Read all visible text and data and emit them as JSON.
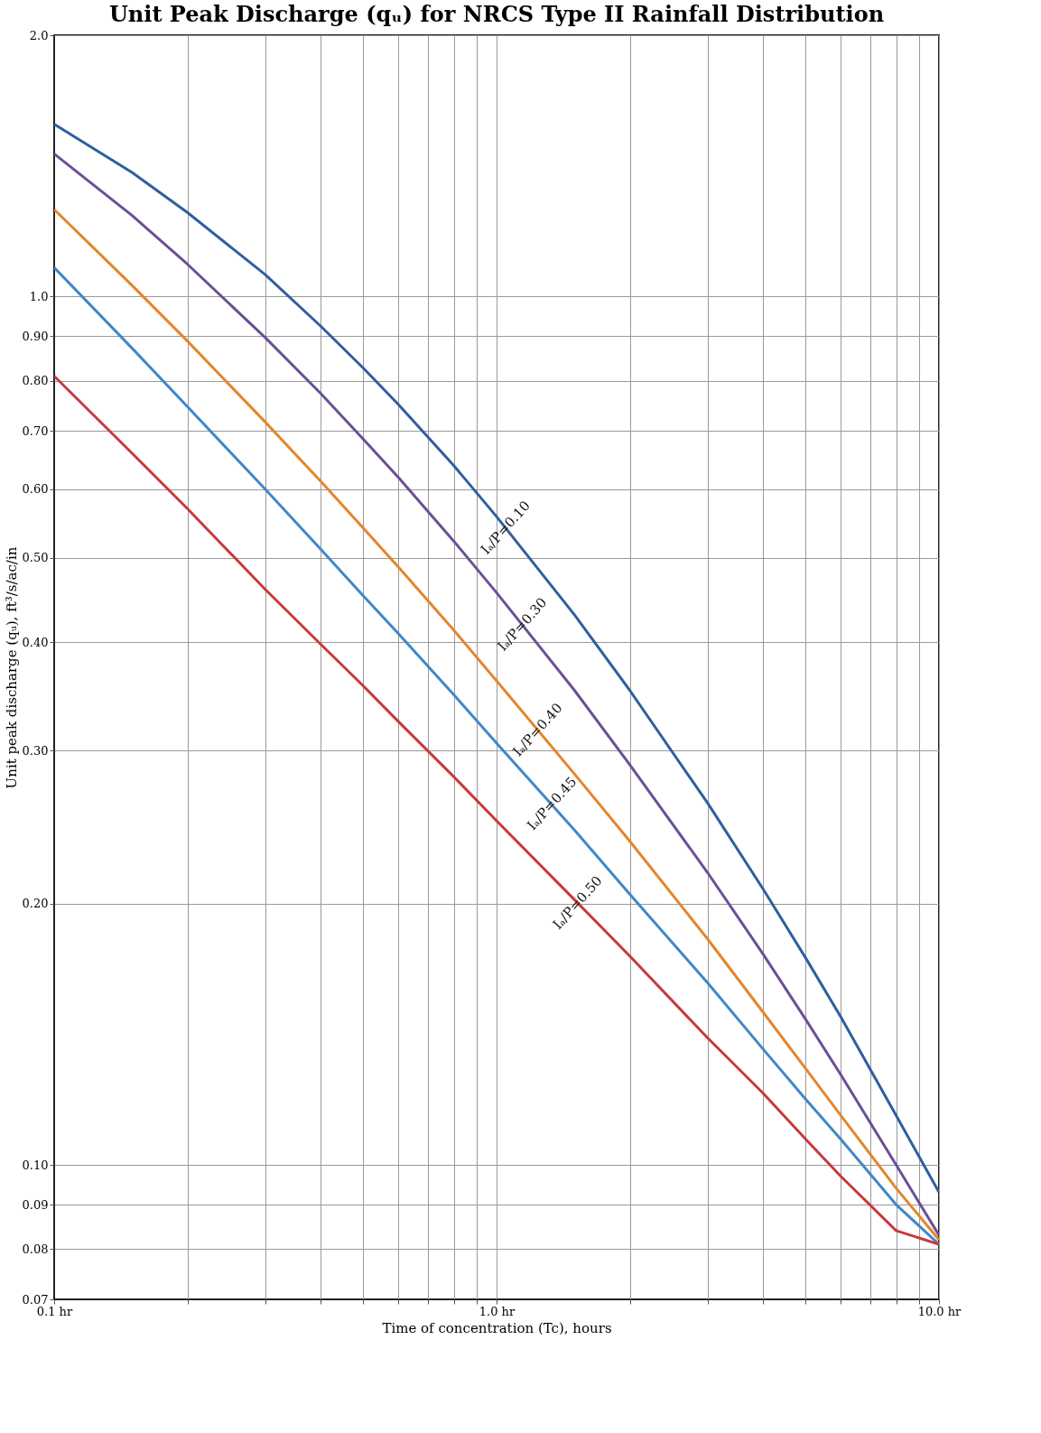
{
  "chart_data": {
    "type": "line",
    "title": "Unit Peak Discharge (qᵤ) for NRCS Type II Rainfall Distribution",
    "xlabel": "Time of concentration (Tc), hours",
    "ylabel": "Unit peak discharge (qᵤ), ft³/s/ac/in",
    "x": [
      0.1,
      0.15,
      0.2,
      0.3,
      0.4,
      0.5,
      0.6,
      0.8,
      1,
      1.5,
      2,
      3,
      4,
      5,
      6,
      8,
      10
    ],
    "series": [
      {
        "color": "#2e5f9e",
        "values": [
          1.58,
          1.39,
          1.25,
          1.06,
          0.925,
          0.827,
          0.751,
          0.639,
          0.558,
          0.43,
          0.352,
          0.261,
          0.208,
          0.173,
          0.148,
          0.114,
          0.093
        ]
      },
      {
        "color": "#6b4f96",
        "values": [
          1.46,
          1.24,
          1.09,
          0.897,
          0.774,
          0.685,
          0.619,
          0.523,
          0.456,
          0.352,
          0.289,
          0.217,
          0.175,
          0.147,
          0.127,
          0.1,
          0.083
        ]
      },
      {
        "color": "#e3862a",
        "values": [
          1.26,
          1.03,
          0.889,
          0.717,
          0.613,
          0.541,
          0.488,
          0.413,
          0.361,
          0.282,
          0.236,
          0.182,
          0.15,
          0.129,
          0.114,
          0.094,
          0.082
        ]
      },
      {
        "color": "#3f88c8",
        "values": [
          1.08,
          0.872,
          0.747,
          0.6,
          0.512,
          0.452,
          0.409,
          0.348,
          0.306,
          0.243,
          0.205,
          0.162,
          0.136,
          0.119,
          0.107,
          0.09,
          0.081
        ]
      },
      {
        "color": "#c9393b",
        "values": [
          0.81,
          0.66,
          0.57,
          0.46,
          0.398,
          0.356,
          0.324,
          0.28,
          0.249,
          0.202,
          0.174,
          0.14,
          0.121,
          0.107,
          0.097,
          0.084,
          0.081
        ]
      }
    ],
    "annotations": [
      {
        "text": "Iₐ/P=0.10",
        "x": 1.1,
        "y": 0.53
      },
      {
        "text": "Iₐ/P=0.30",
        "x": 1.2,
        "y": 0.41
      },
      {
        "text": "Iₐ/P=0.40",
        "x": 1.3,
        "y": 0.31
      },
      {
        "text": "Iₐ/P=0.45",
        "x": 1.4,
        "y": 0.255
      },
      {
        "text": "Iₐ/P=0.50",
        "x": 1.6,
        "y": 0.196
      }
    ],
    "log": "xy",
    "grid": true,
    "xlim": [
      0.1,
      10
    ],
    "ylim": [
      0.07,
      2.0
    ],
    "xticks": [
      {
        "value": 0.1,
        "label": "0.1 hr"
      },
      {
        "value": 0.2,
        "label": null
      },
      {
        "value": 0.3,
        "label": null
      },
      {
        "value": 0.4,
        "label": null
      },
      {
        "value": 0.5,
        "label": null
      },
      {
        "value": 0.6,
        "label": null
      },
      {
        "value": 0.7,
        "label": null
      },
      {
        "value": 0.8,
        "label": null
      },
      {
        "value": 0.9,
        "label": null
      },
      {
        "value": 1,
        "label": "1.0 hr"
      },
      {
        "value": 2,
        "label": null
      },
      {
        "value": 3,
        "label": null
      },
      {
        "value": 4,
        "label": null
      },
      {
        "value": 5,
        "label": null
      },
      {
        "value": 6,
        "label": null
      },
      {
        "value": 7,
        "label": null
      },
      {
        "value": 8,
        "label": null
      },
      {
        "value": 9,
        "label": null
      },
      {
        "value": 10,
        "label": "10.0 hr"
      }
    ],
    "yticks": [
      {
        "value": 2.0,
        "label": "2.0"
      },
      {
        "value": 1.0,
        "label": "1.0"
      },
      {
        "value": 0.9,
        "label": "0.90"
      },
      {
        "value": 0.8,
        "label": "0.80"
      },
      {
        "value": 0.7,
        "label": "0.70"
      },
      {
        "value": 0.6,
        "label": "0.60"
      },
      {
        "value": 0.5,
        "label": "0.50"
      },
      {
        "value": 0.4,
        "label": "0.40"
      },
      {
        "value": 0.3,
        "label": "0.30"
      },
      {
        "value": 0.2,
        "label": "0.20"
      },
      {
        "value": 0.1,
        "label": "0.10"
      },
      0.09,
      0.08,
      0.07
    ]
  }
}
